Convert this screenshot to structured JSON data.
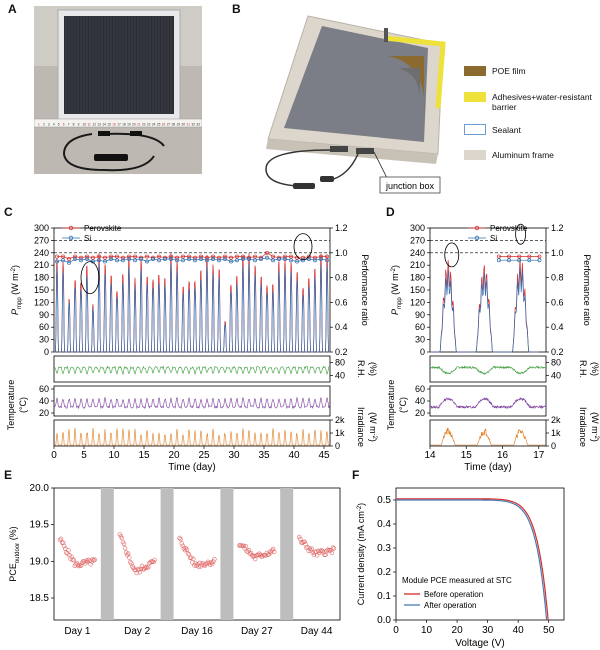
{
  "panels": {
    "a": "A",
    "b": "B",
    "c": "C",
    "d": "D",
    "e": "E",
    "f": "F"
  },
  "panel_a": {
    "ruler_numbers": [
      "1",
      "2",
      "3",
      "4",
      "5",
      "6",
      "7",
      "8",
      "9",
      "10",
      "11",
      "12",
      "13",
      "14",
      "15",
      "16",
      "17",
      "18",
      "19",
      "20",
      "21",
      "22",
      "23",
      "24",
      "25",
      "26",
      "27",
      "28",
      "29",
      "30",
      "31",
      "32",
      "33"
    ]
  },
  "panel_b": {
    "legend": [
      {
        "label": "POE film",
        "color": "#8a6a2e"
      },
      {
        "label": "Adhesives+water-resistant barrier",
        "color": "#ede13a"
      },
      {
        "label": "Sealant",
        "color": "#ffffff"
      },
      {
        "label": "Aluminum frame",
        "color": "#dcd6cc"
      }
    ],
    "callout": "junction box"
  },
  "colors": {
    "perovskite": "#d62b2b",
    "si": "#2f6fb3",
    "rh": "#3a9b3a",
    "temp": "#7b3c9a",
    "irr": "#e07b1c"
  },
  "chart_data": [
    {
      "id": "C",
      "type": "line",
      "legend": [
        "Perovskite",
        "Si"
      ],
      "ylabel": "P_mpp (W m^-2)",
      "ylabel_main": "P",
      "ylabel_sub": "mpp",
      "ylabel_unit": "(W m",
      "ylabel_exp": "-2",
      "y2label": "Performance ratio",
      "xlabel": "Time (day)",
      "xlim": [
        0,
        46
      ],
      "ylim": [
        0,
        300
      ],
      "y2lim": [
        0.2,
        1.2
      ],
      "yticks": [
        "0",
        "30",
        "60",
        "90",
        "120",
        "150",
        "180",
        "210",
        "240",
        "270",
        "300"
      ],
      "y2ticks": [
        "0.2",
        "0.4",
        "0.6",
        "0.8",
        "1.0",
        "1.2"
      ],
      "xticks": [
        "0",
        "5",
        "10",
        "15",
        "20",
        "25",
        "30",
        "35",
        "40",
        "45"
      ],
      "n_days": 46,
      "peak_perovskite": [
        230,
        225,
        150,
        240,
        235,
        250,
        120,
        240,
        238,
        245,
        210,
        236,
        245,
        180,
        240,
        230,
        250,
        246,
        200,
        240,
        230,
        190,
        240,
        235,
        230,
        240,
        215,
        230,
        100,
        230,
        225,
        245,
        240,
        230,
        236,
        230,
        210,
        240,
        225,
        230,
        238,
        220,
        240,
        230,
        240,
        240
      ],
      "peak_si": [
        205,
        200,
        140,
        215,
        210,
        220,
        110,
        215,
        212,
        218,
        190,
        210,
        220,
        160,
        214,
        206,
        222,
        218,
        180,
        215,
        205,
        170,
        214,
        210,
        205,
        214,
        192,
        206,
        90,
        205,
        200,
        218,
        214,
        205,
        210,
        205,
        186,
        214,
        200,
        205,
        212,
        196,
        214,
        205,
        214,
        214
      ],
      "ratio_perovskite": [
        0.97,
        0.97,
        0.95,
        0.97,
        0.96,
        0.97,
        0.96,
        0.97,
        0.96,
        0.97,
        0.97,
        0.96,
        0.97,
        0.97,
        0.96,
        0.97,
        0.96,
        0.97,
        0.96,
        0.97,
        0.96,
        0.97,
        0.97,
        0.96,
        0.97,
        0.96,
        0.97,
        0.96,
        0.97,
        0.96,
        0.97,
        0.97,
        0.96,
        0.97,
        0.96,
        1.0,
        0.97,
        0.96,
        0.97,
        0.97,
        0.96,
        0.96,
        0.97,
        0.96,
        0.97,
        0.97
      ],
      "ratio_si": [
        0.93,
        0.94,
        0.92,
        0.95,
        0.94,
        0.95,
        0.93,
        0.94,
        0.93,
        0.95,
        0.94,
        0.94,
        0.95,
        0.94,
        0.95,
        0.93,
        0.95,
        0.94,
        0.95,
        0.95,
        0.94,
        0.94,
        0.95,
        0.94,
        0.95,
        0.94,
        0.95,
        0.94,
        0.95,
        0.93,
        0.94,
        0.95,
        0.95,
        0.94,
        0.95,
        0.96,
        0.94,
        0.95,
        0.95,
        0.94,
        0.93,
        0.94,
        0.95,
        0.94,
        0.95,
        0.94
      ],
      "rh": {
        "ylabel": "R.H. (%)",
        "ylabel_a": "R.H.",
        "ylabel_b": "(%)",
        "yticks": [
          "40",
          "80"
        ],
        "ylim": [
          20,
          100
        ]
      },
      "temp": {
        "ylabel": "Temperature (°C)",
        "ylabel_a": "Temperature",
        "ylabel_b": "(°C)",
        "yticks": [
          "20",
          "40",
          "60"
        ],
        "ylim": [
          15,
          65
        ]
      },
      "irr": {
        "ylabel": "Irradiance (W m^-2)",
        "ylabel_a": "Irradiance",
        "ylabel_b": "(W m",
        "ylabel_exp": "-2",
        "yticks": [
          "0",
          "1k",
          "2k"
        ],
        "ylim": [
          0,
          2000
        ]
      }
    },
    {
      "id": "D",
      "type": "line",
      "legend": [
        "Perovskite",
        "Si"
      ],
      "ylabel_main": "P",
      "ylabel_sub": "mpp",
      "ylabel_unit": "(W m",
      "ylabel_exp": "-2",
      "y2label": "Performance ratio",
      "xlabel": "Time (day)",
      "xlim": [
        14,
        17.2
      ],
      "ylim": [
        0,
        300
      ],
      "y2lim": [
        0.2,
        1.2
      ],
      "yticks": [
        "0",
        "30",
        "60",
        "90",
        "120",
        "150",
        "180",
        "210",
        "240",
        "270",
        "300"
      ],
      "y2ticks": [
        "0.2",
        "0.4",
        "0.6",
        "0.8",
        "1.0",
        "1.2"
      ],
      "xticks": [
        "14",
        "15",
        "16",
        "17"
      ],
      "day_peaks_perovskite": [
        225,
        215,
        230
      ],
      "day_peaks_si": [
        200,
        195,
        208
      ],
      "ratio_perovskite": 0.97,
      "ratio_si": 0.94,
      "rh": {
        "ylabel_a": "R.H.",
        "ylabel_b": "(%)",
        "yticks": [
          "40",
          "80"
        ],
        "ylim": [
          20,
          100
        ]
      },
      "temp": {
        "ylabel_a": "Temperature",
        "ylabel_b": "(°C)",
        "yticks": [
          "20",
          "40",
          "60"
        ],
        "ylim": [
          15,
          65
        ]
      },
      "irr": {
        "ylabel_a": "Irradiance",
        "ylabel_b": "(W m",
        "ylabel_exp": "-2",
        "yticks": [
          "0",
          "1k",
          "2k"
        ],
        "ylim": [
          0,
          2000
        ]
      }
    },
    {
      "id": "E",
      "type": "scatter",
      "ylabel_main": "PCE",
      "ylabel_sub": "outdoor",
      "ylabel_unit": "(%)",
      "ylim": [
        18.2,
        20.0
      ],
      "yticks": [
        "18.5",
        "19.0",
        "19.5",
        "20.0"
      ],
      "ytick_values": [
        18.5,
        19.0,
        19.5,
        20.0
      ],
      "categories": [
        "Day 1",
        "Day 2",
        "Day 16",
        "Day 27",
        "Day 44"
      ],
      "series": [
        {
          "name": "Day 1",
          "start": 19.3,
          "min": 18.95,
          "end": 19.0
        },
        {
          "name": "Day 2",
          "start": 19.35,
          "min": 18.85,
          "end": 19.0
        },
        {
          "name": "Day 16",
          "start": 19.3,
          "min": 18.95,
          "end": 19.0
        },
        {
          "name": "Day 27",
          "start": 19.25,
          "min": 19.05,
          "end": 19.15
        },
        {
          "name": "Day 44",
          "start": 19.3,
          "min": 19.1,
          "end": 19.15
        }
      ]
    },
    {
      "id": "F",
      "type": "line",
      "xlabel": "Voltage (V)",
      "ylabel": "Current density (mA cm^-2)",
      "ylabel_text": "Current density (mA cm",
      "ylabel_exp": "-2",
      "xlim": [
        0,
        55
      ],
      "ylim": [
        0,
        0.55
      ],
      "xticks": [
        0,
        10,
        20,
        30,
        40,
        50
      ],
      "yticks": [
        "0.0",
        "0.1",
        "0.2",
        "0.3",
        "0.4",
        "0.5"
      ],
      "ytick_values": [
        0,
        0.1,
        0.2,
        0.3,
        0.4,
        0.5
      ],
      "annotation": "Module PCE measured at STC",
      "series": [
        {
          "name": "Before operation",
          "jsc": 0.505,
          "voc": 49.8
        },
        {
          "name": "After operation",
          "jsc": 0.5,
          "voc": 49.3
        }
      ]
    }
  ]
}
